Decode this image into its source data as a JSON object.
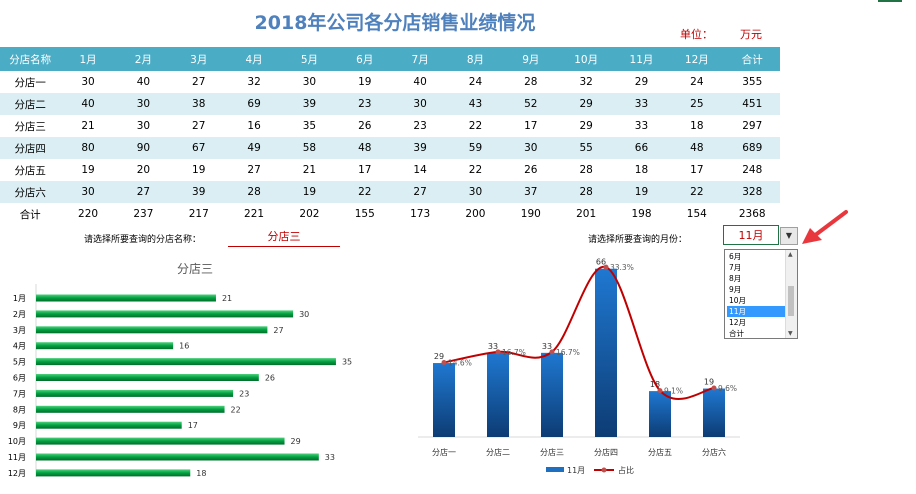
{
  "title": "2018年公司各分店销售业绩情况",
  "unit_label": "单位：",
  "unit_value": "万元",
  "table": {
    "headers": [
      "分店名称",
      "1月",
      "2月",
      "3月",
      "4月",
      "5月",
      "6月",
      "7月",
      "8月",
      "9月",
      "10月",
      "11月",
      "12月",
      "合计"
    ],
    "rows": [
      [
        "分店一",
        "30",
        "40",
        "27",
        "32",
        "30",
        "19",
        "40",
        "24",
        "28",
        "32",
        "29",
        "24",
        "355"
      ],
      [
        "分店二",
        "40",
        "30",
        "38",
        "69",
        "39",
        "23",
        "30",
        "43",
        "52",
        "29",
        "33",
        "25",
        "451"
      ],
      [
        "分店三",
        "21",
        "30",
        "27",
        "16",
        "35",
        "26",
        "23",
        "22",
        "17",
        "29",
        "33",
        "18",
        "297"
      ],
      [
        "分店四",
        "80",
        "90",
        "67",
        "49",
        "58",
        "48",
        "39",
        "59",
        "30",
        "55",
        "66",
        "48",
        "689"
      ],
      [
        "分店五",
        "19",
        "20",
        "19",
        "27",
        "21",
        "17",
        "14",
        "22",
        "26",
        "28",
        "18",
        "17",
        "248"
      ],
      [
        "分店六",
        "30",
        "27",
        "39",
        "28",
        "19",
        "22",
        "27",
        "30",
        "37",
        "28",
        "19",
        "22",
        "328"
      ],
      [
        "合计",
        "220",
        "237",
        "217",
        "221",
        "202",
        "155",
        "173",
        "200",
        "190",
        "201",
        "198",
        "154",
        "2368"
      ]
    ]
  },
  "selectors": {
    "store_prompt": "请选择所要查询的分店名称：",
    "store_value": "分店三",
    "month_prompt": "请选择所要查询的月份：",
    "month_value": "11月",
    "month_options": [
      "6月",
      "7月",
      "8月",
      "9月",
      "10月",
      "11月",
      "12月",
      "合计"
    ],
    "month_selected": "11月"
  },
  "colors": {
    "header_bg": "#4bacc6",
    "band_bg": "#daeef3",
    "title": "#4f81bd",
    "accent_red": "#c00000",
    "bar_green": "#00b050",
    "column_blue": "#1f6fc0",
    "arrow_red": "#e8383d"
  },
  "chart_data": [
    {
      "type": "bar",
      "title": "分店三",
      "categories": [
        "1月",
        "2月",
        "3月",
        "4月",
        "5月",
        "6月",
        "7月",
        "8月",
        "9月",
        "10月",
        "11月",
        "12月"
      ],
      "values": [
        21,
        30,
        27,
        16,
        35,
        26,
        23,
        22,
        17,
        29,
        33,
        18
      ],
      "orientation": "horizontal",
      "xlim": [
        0,
        40
      ],
      "grid": false
    },
    {
      "type": "bar",
      "title": "",
      "categories": [
        "分店一",
        "分店二",
        "分店三",
        "分店四",
        "分店五",
        "分店六"
      ],
      "series": [
        {
          "name": "11月",
          "type": "bar",
          "values": [
            29,
            33,
            33,
            66,
            18,
            19
          ]
        },
        {
          "name": "占比",
          "type": "line",
          "values": [
            14.6,
            16.7,
            16.7,
            33.3,
            9.1,
            9.6
          ],
          "labels": [
            "14.6%",
            "16.7%",
            "16.7%",
            "33.3%",
            "9.1%",
            "9.6%"
          ]
        }
      ],
      "legend": "bottom",
      "grid": false
    }
  ]
}
